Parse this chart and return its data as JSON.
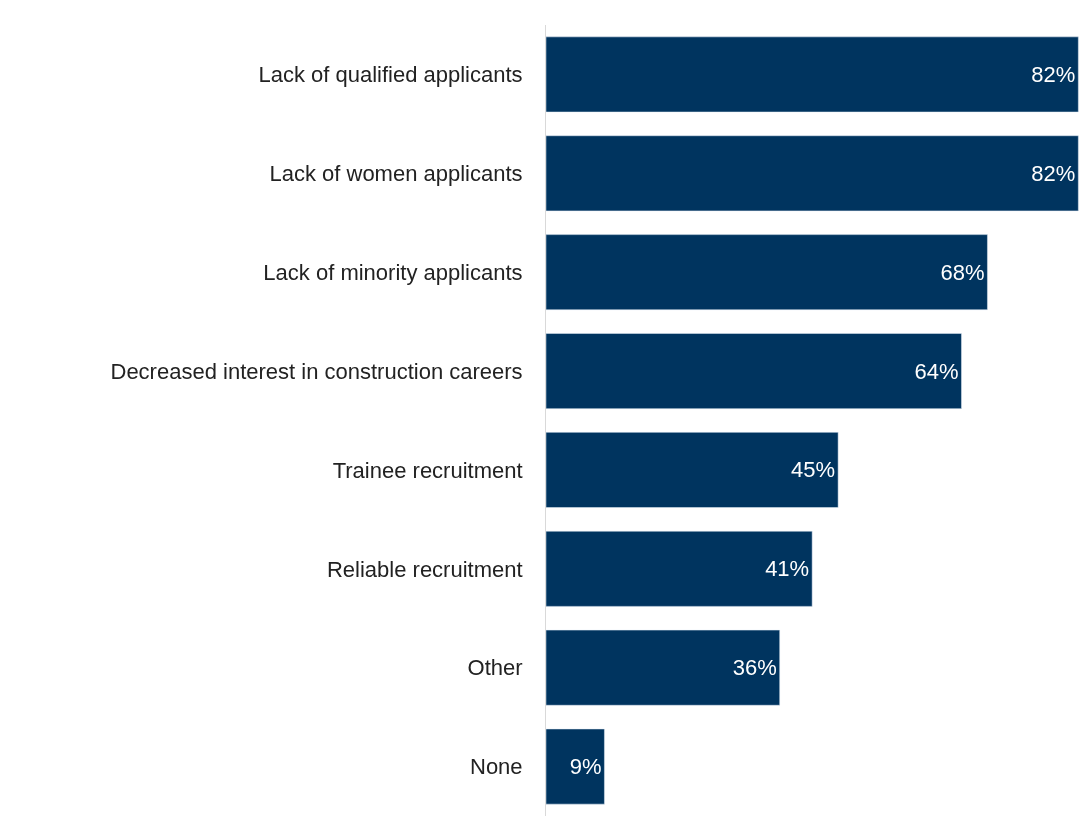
{
  "chart_data": {
    "type": "bar",
    "orientation": "horizontal",
    "tick_labels": "y",
    "categories": [
      "Lack of qualified applicants",
      "Lack of women applicants",
      "Lack of minority applicants",
      "Decreased interest in construction careers",
      "Trainee recruitment",
      "Reliable recruitment",
      "Other",
      "None"
    ],
    "values": [
      82,
      82,
      68,
      64,
      45,
      41,
      36,
      9
    ],
    "value_labels": [
      "82%",
      "82%",
      "68%",
      "64%",
      "45%",
      "41%",
      "36%",
      "9%"
    ],
    "color": "#00345f"
  }
}
